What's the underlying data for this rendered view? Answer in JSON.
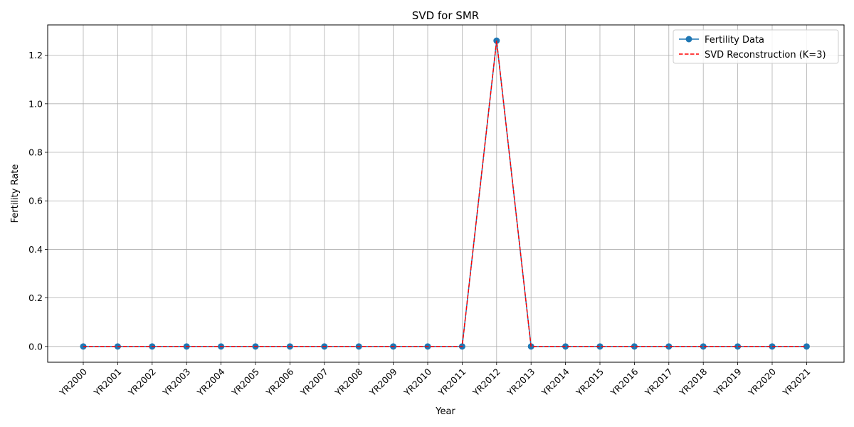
{
  "chart_data": {
    "type": "line",
    "title": "SVD for SMR",
    "xlabel": "Year",
    "ylabel": "Fertility Rate",
    "categories": [
      "YR2000",
      "YR2001",
      "YR2002",
      "YR2003",
      "YR2004",
      "YR2005",
      "YR2006",
      "YR2007",
      "YR2008",
      "YR2009",
      "YR2010",
      "YR2011",
      "YR2012",
      "YR2013",
      "YR2014",
      "YR2015",
      "YR2016",
      "YR2017",
      "YR2018",
      "YR2019",
      "YR2020",
      "YR2021"
    ],
    "yticks": [
      "0.0",
      "0.2",
      "0.4",
      "0.6",
      "0.8",
      "1.0",
      "1.2"
    ],
    "ylim": [
      -0.065,
      1.325
    ],
    "grid": true,
    "legend_position": "top-right",
    "series": [
      {
        "name": "Fertility Data",
        "color": "#1f77b4",
        "style": "solid-with-circle-markers",
        "values": [
          0,
          0,
          0,
          0,
          0,
          0,
          0,
          0,
          0,
          0,
          0,
          0,
          1.26,
          0,
          0,
          0,
          0,
          0,
          0,
          0,
          0,
          0
        ]
      },
      {
        "name": "SVD Reconstruction (K=3)",
        "color": "#ff0000",
        "style": "dashed",
        "values": [
          0,
          0,
          0,
          0,
          0,
          0,
          0,
          0,
          0,
          0,
          0,
          0,
          1.26,
          0,
          0,
          0,
          0,
          0,
          0,
          0,
          0,
          0
        ]
      }
    ]
  }
}
